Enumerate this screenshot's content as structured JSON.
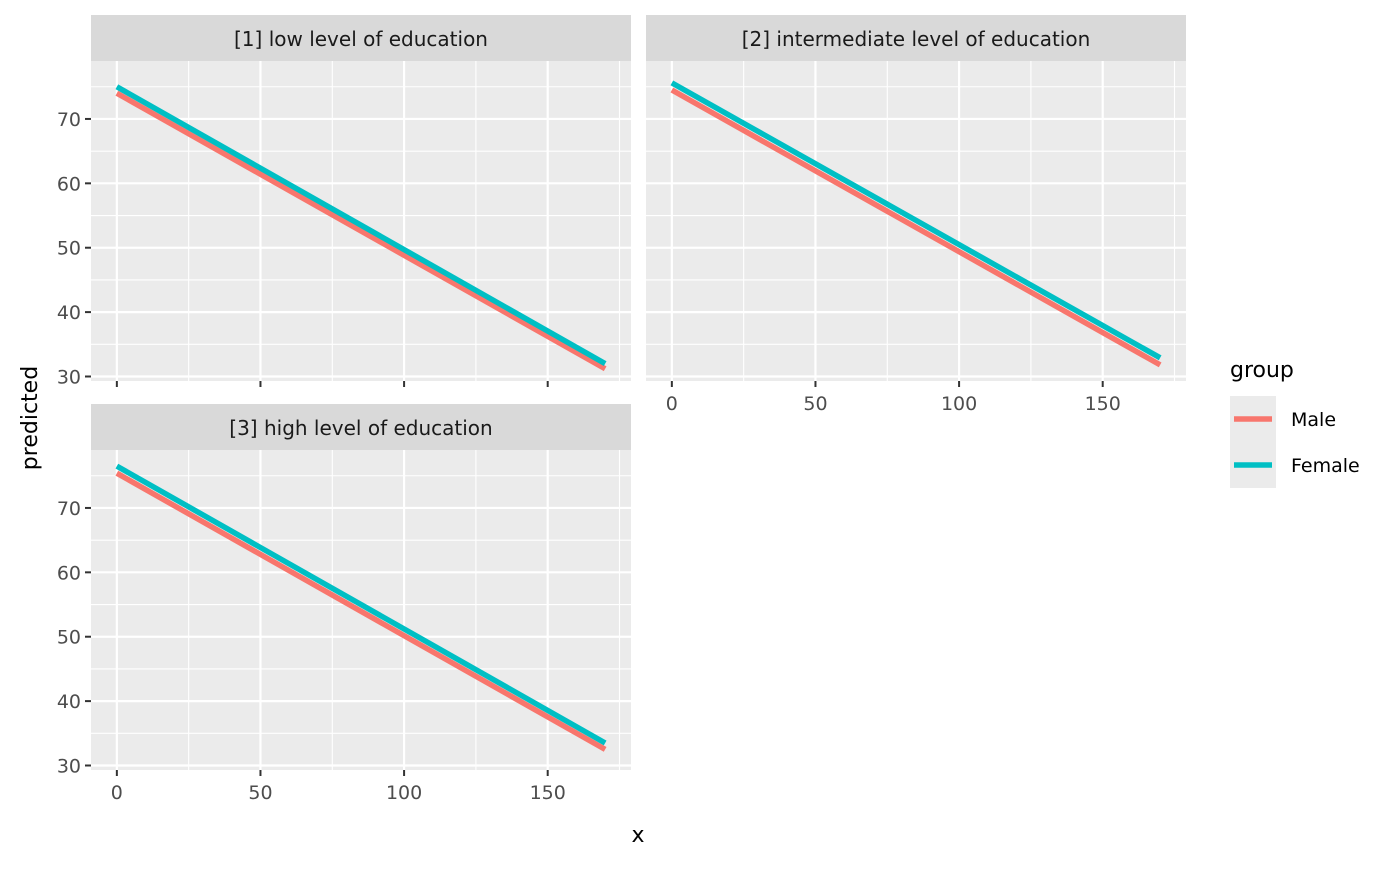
{
  "chart_data": {
    "type": "line",
    "layout": "facet_wrap",
    "xlabel": "x",
    "ylabel": "predicted",
    "legend": {
      "title": "group",
      "position": "right",
      "entries": [
        {
          "name": "Male",
          "color": "#F8766D"
        },
        {
          "name": "Female",
          "color": "#00BFC4"
        }
      ]
    },
    "x_ticks": [
      0,
      50,
      100,
      150
    ],
    "y_ticks": [
      30,
      40,
      50,
      60,
      70
    ],
    "xlim": [
      -9,
      179
    ],
    "ylim": [
      29.3,
      79
    ],
    "grid": true,
    "panel_background": "#EBEBEB",
    "strip_background": "#D9D9D9",
    "panels": [
      {
        "strip": "[1] low level of education",
        "series": [
          {
            "name": "Male",
            "x": [
              0,
              170
            ],
            "y": [
              74.0,
              31.2
            ]
          },
          {
            "name": "Female",
            "x": [
              0,
              170
            ],
            "y": [
              75.0,
              32.0
            ]
          }
        ]
      },
      {
        "strip": "[2] intermediate level of education",
        "series": [
          {
            "name": "Male",
            "x": [
              0,
              170
            ],
            "y": [
              74.5,
              31.8
            ]
          },
          {
            "name": "Female",
            "x": [
              0,
              170
            ],
            "y": [
              75.6,
              32.9
            ]
          }
        ]
      },
      {
        "strip": "[3] high level of education",
        "series": [
          {
            "name": "Male",
            "x": [
              0,
              170
            ],
            "y": [
              75.4,
              32.5
            ]
          },
          {
            "name": "Female",
            "x": [
              0,
              170
            ],
            "y": [
              76.5,
              33.5
            ]
          }
        ]
      }
    ]
  }
}
